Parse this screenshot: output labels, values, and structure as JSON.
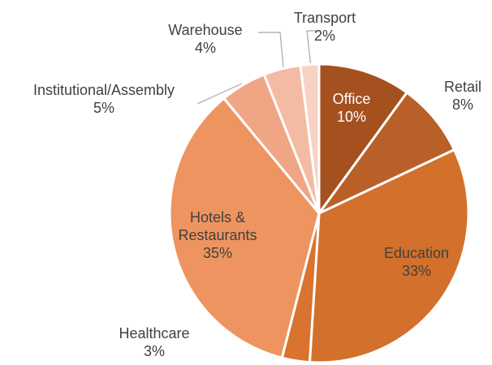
{
  "chart_data": {
    "type": "pie",
    "categories": [
      "Office",
      "Retail",
      "Education",
      "Healthcare",
      "Hotels & Restaurants",
      "Institutional/Assembly",
      "Warehouse",
      "Transport"
    ],
    "values": [
      10,
      8,
      33,
      3,
      35,
      5,
      4,
      2
    ],
    "value_labels": [
      "10%",
      "8%",
      "33%",
      "3%",
      "35%",
      "5%",
      "4%",
      "2%"
    ],
    "colors": [
      "#a5501f",
      "#b95f28",
      "#d2702c",
      "#d9732f",
      "#ee9460",
      "#f0a585",
      "#f4bba4",
      "#f8d2c5"
    ]
  }
}
